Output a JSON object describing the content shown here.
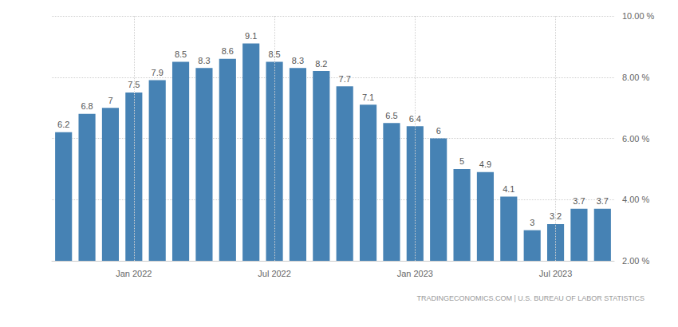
{
  "chart_data": {
    "type": "bar",
    "categories": [
      null,
      null,
      null,
      "Jan 2022",
      null,
      null,
      null,
      null,
      null,
      "Jul 2022",
      null,
      null,
      null,
      null,
      null,
      "Jan 2023",
      null,
      null,
      null,
      null,
      null,
      "Jul 2023",
      null,
      null
    ],
    "values": [
      6.2,
      6.8,
      7,
      7.5,
      7.9,
      8.5,
      8.3,
      8.6,
      9.1,
      8.5,
      8.3,
      8.2,
      7.7,
      7.1,
      6.5,
      6.4,
      6,
      5,
      4.9,
      4.1,
      3,
      3.2,
      3.7,
      3.7
    ],
    "color": "#4682b4",
    "ylim": [
      2,
      10
    ],
    "yticks": [
      {
        "value": 2,
        "label": "2.00 %"
      },
      {
        "value": 4,
        "label": "4.00 %"
      },
      {
        "value": 6,
        "label": "6.00 %"
      },
      {
        "value": 8,
        "label": "8.00 %"
      },
      {
        "value": 10,
        "label": "10.00 %"
      }
    ],
    "grid": true,
    "data_labels": true,
    "annotations": [
      "TRADINGECONOMICS.COM | U.S. BUREAU OF LABOR STATISTICS"
    ]
  }
}
